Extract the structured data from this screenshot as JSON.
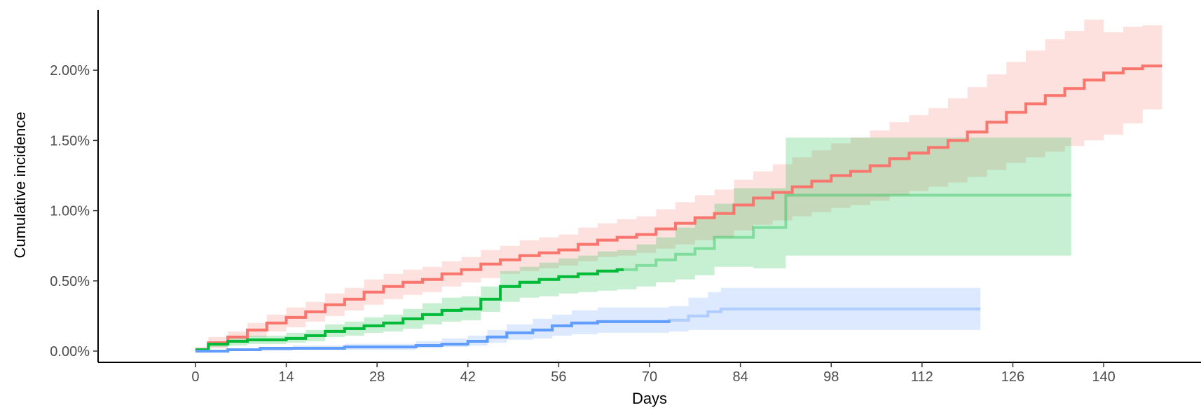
{
  "chart_data": {
    "type": "line",
    "title": "",
    "xlabel": "Days",
    "ylabel": "Cumulative incidence",
    "xlim": [
      -15,
      155
    ],
    "ylim": [
      -0.0008,
      0.0245
    ],
    "x_ticks": [
      0,
      14,
      28,
      42,
      56,
      70,
      84,
      98,
      112,
      126,
      140
    ],
    "y_ticks": [
      {
        "value": 0,
        "label": "0.00%"
      },
      {
        "value": 0.005,
        "label": "0.50%"
      },
      {
        "value": 0.01,
        "label": "1.00%"
      },
      {
        "value": 0.015,
        "label": "1.50%"
      },
      {
        "value": 0.02,
        "label": "2.00%"
      }
    ],
    "grid": false,
    "legend": "none",
    "series": [
      {
        "color": "#F8766D",
        "solid_until": 149,
        "x": [
          0,
          2,
          5,
          8,
          11,
          14,
          17,
          20,
          23,
          26,
          29,
          32,
          35,
          38,
          41,
          44,
          47,
          50,
          53,
          56,
          59,
          62,
          65,
          68,
          71,
          74,
          77,
          80,
          83,
          86,
          89,
          92,
          95,
          98,
          101,
          104,
          107,
          110,
          113,
          116,
          119,
          122,
          125,
          128,
          131,
          134,
          137,
          140,
          143,
          146,
          149
        ],
        "y": [
          0.0001,
          0.0006,
          0.001,
          0.0015,
          0.002,
          0.0024,
          0.0028,
          0.0033,
          0.0037,
          0.0042,
          0.0046,
          0.0049,
          0.0051,
          0.0055,
          0.0058,
          0.0062,
          0.0065,
          0.0068,
          0.007,
          0.0072,
          0.0076,
          0.0079,
          0.0081,
          0.0083,
          0.0087,
          0.0091,
          0.0095,
          0.0098,
          0.0104,
          0.0109,
          0.0113,
          0.0117,
          0.0121,
          0.0125,
          0.0128,
          0.0132,
          0.0137,
          0.0141,
          0.0145,
          0.015,
          0.0156,
          0.0163,
          0.017,
          0.0176,
          0.0182,
          0.0187,
          0.0193,
          0.0198,
          0.0201,
          0.0203,
          0.0203
        ],
        "lower": [
          0,
          0.0002,
          0.0006,
          0.001,
          0.0014,
          0.0017,
          0.0021,
          0.0025,
          0.0029,
          0.0033,
          0.0037,
          0.004,
          0.0042,
          0.0046,
          0.0049,
          0.0052,
          0.0055,
          0.0057,
          0.0059,
          0.0061,
          0.0064,
          0.0067,
          0.0068,
          0.007,
          0.0073,
          0.0076,
          0.0079,
          0.0081,
          0.0086,
          0.009,
          0.0093,
          0.0096,
          0.0099,
          0.0102,
          0.0104,
          0.0107,
          0.0111,
          0.0114,
          0.0117,
          0.012,
          0.0124,
          0.0129,
          0.0134,
          0.0138,
          0.0142,
          0.0146,
          0.015,
          0.0154,
          0.0162,
          0.0172,
          0.0172
        ],
        "upper": [
          0.0003,
          0.001,
          0.0014,
          0.002,
          0.0026,
          0.0031,
          0.0035,
          0.0041,
          0.0045,
          0.0051,
          0.0055,
          0.0058,
          0.006,
          0.0064,
          0.0067,
          0.0072,
          0.0075,
          0.0079,
          0.0081,
          0.0083,
          0.0088,
          0.0091,
          0.0094,
          0.0096,
          0.0101,
          0.0106,
          0.0111,
          0.0115,
          0.0122,
          0.0128,
          0.0133,
          0.0138,
          0.0143,
          0.0148,
          0.0152,
          0.0157,
          0.0163,
          0.0168,
          0.0173,
          0.018,
          0.0188,
          0.0197,
          0.0206,
          0.0214,
          0.0222,
          0.0228,
          0.0236,
          0.0227,
          0.0231,
          0.0232,
          0.0232
        ]
      },
      {
        "color": "#00BA38",
        "solid_until": 66,
        "x": [
          0,
          2,
          5,
          8,
          11,
          14,
          17,
          20,
          23,
          26,
          29,
          32,
          35,
          38,
          41,
          44,
          47,
          50,
          53,
          56,
          59,
          62,
          65,
          68,
          71,
          74,
          77,
          80,
          83,
          86,
          89,
          91,
          94,
          97,
          100,
          103,
          106,
          135
        ],
        "y": [
          0.0001,
          0.0005,
          0.0007,
          0.0008,
          0.0008,
          0.0009,
          0.0011,
          0.0014,
          0.0016,
          0.0018,
          0.002,
          0.0023,
          0.0026,
          0.0029,
          0.003,
          0.0037,
          0.0046,
          0.0049,
          0.0051,
          0.0053,
          0.0055,
          0.0057,
          0.0058,
          0.0061,
          0.0065,
          0.0069,
          0.0073,
          0.0081,
          0.0081,
          0.0088,
          0.0088,
          0.0111,
          0.0111,
          0.0111,
          0.0111,
          0.0111,
          0.0111,
          0.0111
        ],
        "lower": [
          0,
          0.0003,
          0.0004,
          0.0005,
          0.0005,
          0.0006,
          0.0007,
          0.001,
          0.0011,
          0.0013,
          0.0014,
          0.0016,
          0.0019,
          0.0021,
          0.0022,
          0.0028,
          0.0035,
          0.0038,
          0.0039,
          0.0041,
          0.0042,
          0.0043,
          0.0044,
          0.0046,
          0.0049,
          0.0051,
          0.0054,
          0.006,
          0.006,
          0.0059,
          0.0059,
          0.0068,
          0.0068,
          0.0068,
          0.0068,
          0.0068,
          0.0068,
          0.0068
        ],
        "upper": [
          0.0002,
          0.0007,
          0.001,
          0.0011,
          0.0011,
          0.0013,
          0.0015,
          0.0019,
          0.0021,
          0.0024,
          0.0026,
          0.003,
          0.0034,
          0.0038,
          0.0039,
          0.0046,
          0.0057,
          0.006,
          0.0063,
          0.0066,
          0.0068,
          0.0071,
          0.0072,
          0.0076,
          0.0081,
          0.0088,
          0.0094,
          0.0105,
          0.0116,
          0.0116,
          0.0116,
          0.0152,
          0.0152,
          0.0152,
          0.0152,
          0.0152,
          0.0152,
          0.0152
        ]
      },
      {
        "color": "#619CFF",
        "solid_until": 73,
        "x": [
          0,
          5,
          10,
          15,
          20,
          23,
          26,
          30,
          34,
          38,
          42,
          45,
          48,
          52,
          55,
          58,
          62,
          66,
          70,
          73,
          76,
          79,
          81,
          90,
          100,
          121
        ],
        "y": [
          0,
          0.0001,
          0.0002,
          0.0002,
          0.0002,
          0.0003,
          0.0003,
          0.0003,
          0.0004,
          0.0005,
          0.0007,
          0.001,
          0.0013,
          0.0015,
          0.0018,
          0.002,
          0.0021,
          0.0021,
          0.0021,
          0.0022,
          0.0025,
          0.0028,
          0.003,
          0.003,
          0.003,
          0.003
        ],
        "lower": [
          0,
          0,
          0,
          0.0001,
          0.0001,
          0.0001,
          0.0001,
          0.0001,
          0.0002,
          0.0003,
          0.0004,
          0.0006,
          0.0008,
          0.0009,
          0.0011,
          0.0012,
          0.0013,
          0.0013,
          0.0013,
          0.0014,
          0.0015,
          0.0015,
          0.0015,
          0.0015,
          0.0015,
          0.0015
        ],
        "upper": [
          0.0001,
          0.0002,
          0.0003,
          0.0004,
          0.0004,
          0.0005,
          0.0005,
          0.0005,
          0.0007,
          0.0009,
          0.0011,
          0.0015,
          0.0019,
          0.0023,
          0.0026,
          0.0029,
          0.0031,
          0.0031,
          0.0031,
          0.0032,
          0.0038,
          0.0042,
          0.0045,
          0.0045,
          0.0045,
          0.0045
        ]
      }
    ]
  }
}
